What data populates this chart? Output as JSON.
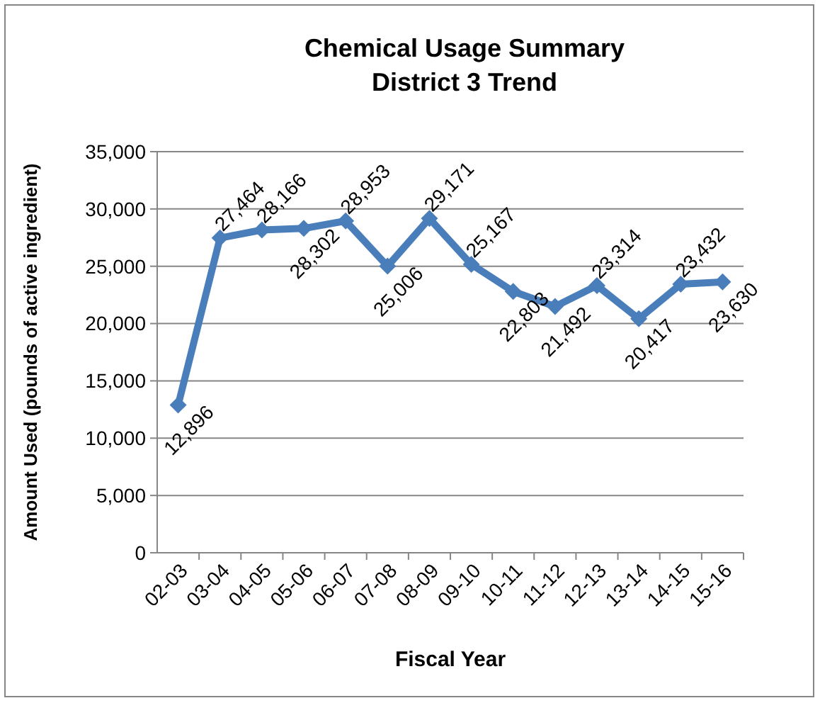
{
  "chart_data": {
    "type": "line",
    "title": "Chemical Usage Summary\nDistrict 3 Trend",
    "xlabel": "Fiscal Year",
    "ylabel": "Amount  Used (pounds of active ingredient)",
    "categories": [
      "02-03",
      "03-04",
      "04-05",
      "05-06",
      "06-07",
      "07-08",
      "08-09",
      "09-10",
      "10-11",
      "11-12",
      "12-13",
      "13-14",
      "14-15",
      "15-16"
    ],
    "series": [
      {
        "color": "#4a7ebb",
        "values": [
          12896,
          27464,
          28166,
          28302,
          28953,
          25006,
          29171,
          25167,
          22803,
          21492,
          23314,
          20417,
          23432,
          23630
        ],
        "value_labels": [
          "12,896",
          "27,464",
          "28,166",
          "28,302",
          "28,953",
          "25,006",
          "29,171",
          "25,167",
          "22,803",
          "21,492",
          "23,314",
          "20,417",
          "23,432",
          "23,630"
        ]
      }
    ],
    "ylim": [
      0,
      35000
    ],
    "yticks": [
      {
        "value": 0,
        "label": "0"
      },
      {
        "value": 5000,
        "label": "5,000"
      },
      {
        "value": 10000,
        "label": "10,000"
      },
      {
        "value": 15000,
        "label": "15,000"
      },
      {
        "value": 20000,
        "label": "20,000"
      },
      {
        "value": 25000,
        "label": "25,000"
      },
      {
        "value": 30000,
        "label": "30,000"
      },
      {
        "value": 35000,
        "label": "35,000"
      }
    ],
    "grid": "y",
    "marker": "diamond",
    "line_style": "solid"
  }
}
